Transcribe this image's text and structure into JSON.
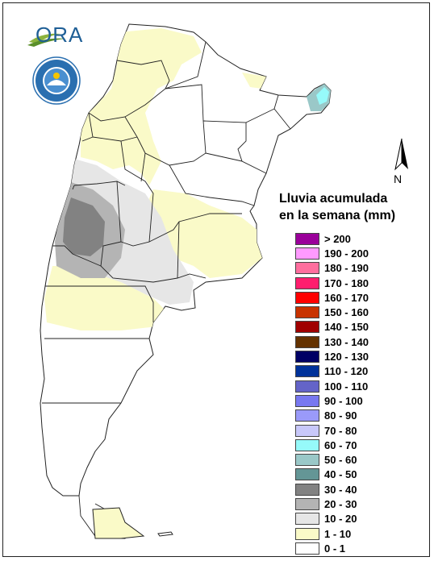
{
  "logo": {
    "text": "ORA",
    "emblem": "smn-emblem-icon"
  },
  "north_arrow": {
    "label": "N"
  },
  "legend": {
    "title_line1": "Lluvia acumulada",
    "title_line2": "en la semana (mm)",
    "items": [
      {
        "label": "> 200",
        "color": "#9a009a"
      },
      {
        "label": "190 - 200",
        "color": "#ff9aff"
      },
      {
        "label": "180 - 190",
        "color": "#ff6e9e"
      },
      {
        "label": "170 - 180",
        "color": "#ff1e6e"
      },
      {
        "label": "160 - 170",
        "color": "#ff0000"
      },
      {
        "label": "150 - 160",
        "color": "#c83200"
      },
      {
        "label": "140 - 150",
        "color": "#a00000"
      },
      {
        "label": "130 - 140",
        "color": "#643200"
      },
      {
        "label": "120 - 130",
        "color": "#000064"
      },
      {
        "label": "110 - 120",
        "color": "#00329a"
      },
      {
        "label": "100 - 110",
        "color": "#6464c8"
      },
      {
        "label": "90 - 100",
        "color": "#7878f0"
      },
      {
        "label": "80 - 90",
        "color": "#9a9afa"
      },
      {
        "label": "70 - 80",
        "color": "#c8c8fa"
      },
      {
        "label": "60 - 70",
        "color": "#96fafa"
      },
      {
        "label": "50 - 60",
        "color": "#9ac8c8"
      },
      {
        "label": "40 - 50",
        "color": "#649696"
      },
      {
        "label": "30 - 40",
        "color": "#828282"
      },
      {
        "label": "20 - 30",
        "color": "#b4b4b4"
      },
      {
        "label": "10 - 20",
        "color": "#e6e6e6"
      },
      {
        "label": "1 - 10",
        "color": "#fafac8"
      },
      {
        "label": "0 - 1",
        "color": "#ffffff"
      }
    ]
  },
  "colors": {
    "border": "#222222",
    "rain_1_10": "#fafac8",
    "rain_10_20": "#e6e6e6",
    "rain_20_30": "#b4b4b4",
    "rain_30_40": "#828282",
    "rain_50_60": "#9ac8c8",
    "rain_60_70": "#96fafa"
  }
}
